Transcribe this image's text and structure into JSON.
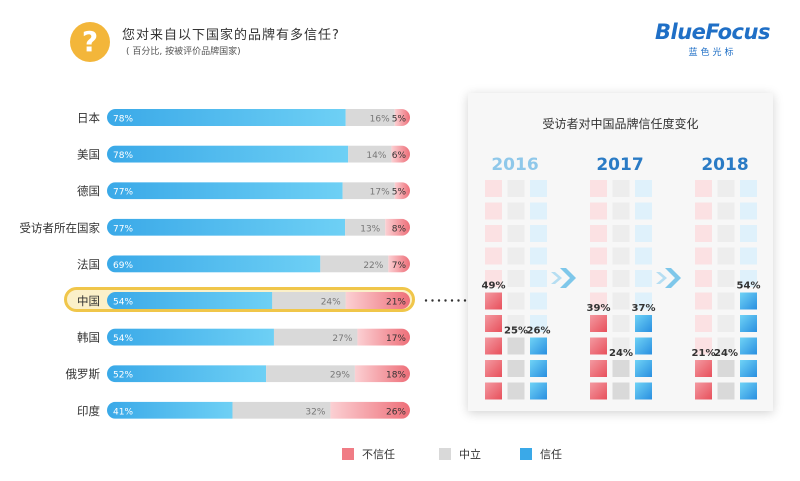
{
  "header": {
    "icon_char": "?",
    "title": "您对来自以下国家的品牌有多信任?",
    "subtitle": "( 百分比, 按被评价品牌国家)",
    "brand_name": "BlueFocus",
    "brand_sub": "蓝色光标"
  },
  "colors": {
    "distrust": "#f07c85",
    "neutral": "#d9d9d9",
    "trust": "#3aa9e8",
    "highlight": "#f0c64a"
  },
  "chart_data": [
    {
      "type": "bar",
      "orientation": "horizontal",
      "stacked": true,
      "title": "您对来自以下国家的品牌有多信任?",
      "subtitle": "( 百分比, 按被评价品牌国家)",
      "categories": [
        "日本",
        "美国",
        "德国",
        "受访者所在国家",
        "法国",
        "中国",
        "韩国",
        "俄罗斯",
        "印度"
      ],
      "highlighted_category": "中国",
      "series": [
        {
          "name": "信任",
          "values": [
            78,
            78,
            77,
            77,
            69,
            54,
            54,
            52,
            41
          ]
        },
        {
          "name": "中立",
          "values": [
            16,
            14,
            17,
            13,
            22,
            24,
            27,
            29,
            32
          ]
        },
        {
          "name": "不信任",
          "values": [
            5,
            6,
            5,
            8,
            7,
            21,
            17,
            18,
            26
          ]
        }
      ],
      "unit": "%",
      "legend_position": "bottom"
    },
    {
      "type": "bar",
      "style": "waffle-column",
      "title": "受访者对中国品牌信任度变化",
      "categories": [
        "2016",
        "2017",
        "2018"
      ],
      "series": [
        {
          "name": "不信任",
          "values": [
            49,
            39,
            21
          ]
        },
        {
          "name": "中立",
          "values": [
            25,
            24,
            24
          ]
        },
        {
          "name": "信任",
          "values": [
            26,
            37,
            54
          ]
        }
      ],
      "unit": "%"
    }
  ],
  "legend": [
    {
      "label": "不信任",
      "color": "#f07c85"
    },
    {
      "label": "中立",
      "color": "#d9d9d9"
    },
    {
      "label": "信任",
      "color": "#3aa9e8"
    }
  ]
}
